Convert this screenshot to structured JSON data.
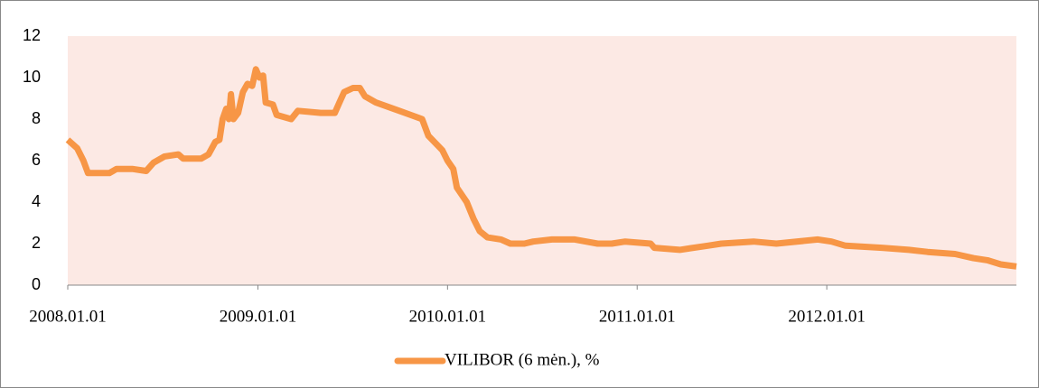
{
  "chart_data": {
    "type": "line",
    "x": [
      "2008.01.01",
      "2008.01.19",
      "2008.01.31",
      "2008.02.09",
      "2008.03.21",
      "2008.04.04",
      "2008.05.04",
      "2008.05.31",
      "2008.06.14",
      "2008.07.05",
      "2008.08.01",
      "2008.08.10",
      "2008.09.14",
      "2008.09.28",
      "2008.10.11",
      "2008.10.19",
      "2008.10.25",
      "2008.11.01",
      "2008.11.06",
      "2008.11.10",
      "2008.11.15",
      "2008.11.24",
      "2008.12.03",
      "2008.12.12",
      "2008.12.21",
      "2008.12.28",
      "2009.01.04",
      "2009.01.11",
      "2009.01.16",
      "2009.01.30",
      "2009.02.06",
      "2009.03.06",
      "2009.03.19",
      "2009.05.02",
      "2009.05.29",
      "2009.06.07",
      "2009.06.16",
      "2009.07.03",
      "2009.07.16",
      "2009.07.26",
      "2009.08.16",
      "2009.09.30",
      "2009.11.13",
      "2009.11.25",
      "2009.12.22",
      "2010.01.01",
      "2010.01.12",
      "2010.01.19",
      "2010.02.07",
      "2010.02.20",
      "2010.03.04",
      "2010.03.19",
      "2010.04.14",
      "2010.05.02",
      "2010.05.29",
      "2010.06.15",
      "2010.07.21",
      "2010.09.03",
      "2010.10.17",
      "2010.11.13",
      "2010.12.09",
      "2011.01.27",
      "2011.02.03",
      "2011.03.24",
      "2011.05.17",
      "2011.06.12",
      "2011.08.13",
      "2011.09.26",
      "2011.12.15",
      "2012.01.10",
      "2012.02.06",
      "2012.04.16",
      "2012.06.07",
      "2012.07.13",
      "2012.09.04",
      "2012.10.09",
      "2012.11.05",
      "2012.12.01",
      "2012.12.31"
    ],
    "series": [
      {
        "name": "VILIBOR (6 mėn.), %",
        "color": "#f79646",
        "values": [
          7.0,
          6.6,
          6.0,
          5.4,
          5.4,
          5.6,
          5.6,
          5.5,
          5.9,
          6.2,
          6.3,
          6.1,
          6.1,
          6.3,
          6.9,
          7.0,
          8.0,
          8.5,
          8.0,
          9.2,
          8.0,
          8.3,
          9.3,
          9.7,
          9.6,
          10.4,
          10.0,
          10.1,
          8.8,
          8.7,
          8.2,
          8.0,
          8.4,
          8.3,
          8.3,
          8.8,
          9.3,
          9.5,
          9.5,
          9.1,
          8.8,
          8.4,
          8.0,
          7.2,
          6.5,
          6.0,
          5.6,
          4.7,
          4.0,
          3.2,
          2.6,
          2.3,
          2.2,
          2.0,
          2.0,
          2.1,
          2.2,
          2.2,
          2.0,
          2.0,
          2.1,
          2.0,
          1.8,
          1.7,
          1.9,
          2.0,
          2.1,
          2.0,
          2.2,
          2.1,
          1.9,
          1.8,
          1.7,
          1.6,
          1.5,
          1.3,
          1.2,
          1.0,
          0.9
        ]
      }
    ],
    "xlim": [
      "2008.01.01",
      "2012.12.31"
    ],
    "xticks": [
      "2008.01.01",
      "2009.01.01",
      "2010.01.01",
      "2011.01.01",
      "2012.01.01"
    ],
    "ylim": [
      0,
      12
    ],
    "yticks": [
      0,
      2,
      4,
      6,
      8,
      10,
      12
    ],
    "legend": "bottom"
  }
}
